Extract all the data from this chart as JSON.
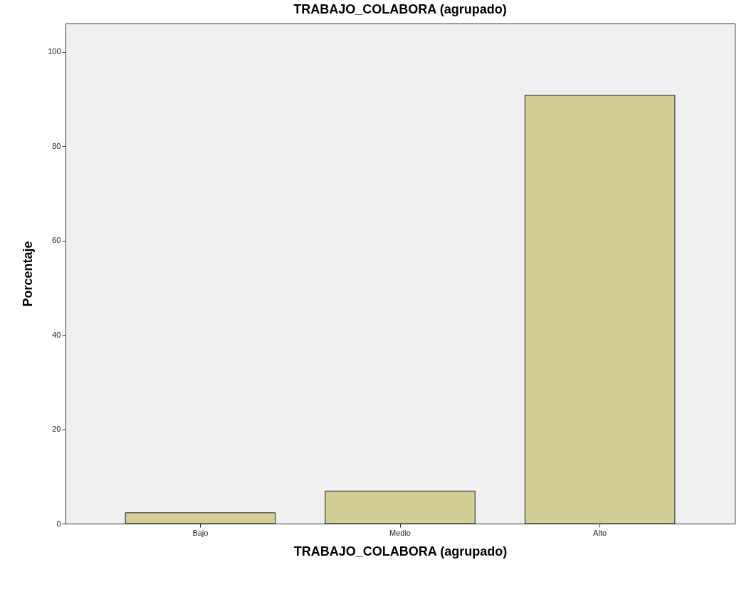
{
  "chart_data": {
    "type": "bar",
    "title": "TRABAJO_COLABORA (agrupado)",
    "xlabel": "TRABAJO_COLABORA (agrupado)",
    "ylabel": "Porcentaje",
    "categories": [
      "Bajo",
      "Medio",
      "Alto"
    ],
    "values": [
      2.3,
      6.9,
      90.8
    ],
    "color": "#d3cd96",
    "ylim": [
      0,
      106
    ],
    "yticks": [
      0,
      20,
      40,
      60,
      80,
      100
    ],
    "grid": false
  }
}
